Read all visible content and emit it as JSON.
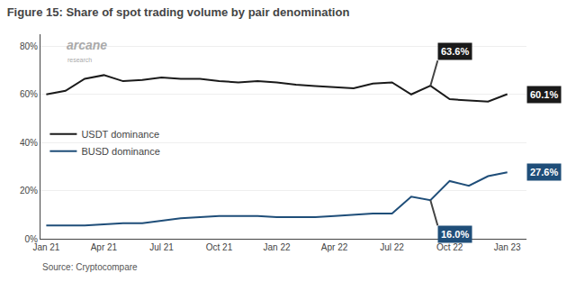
{
  "chart_data": {
    "type": "line",
    "title": "Figure 15: Share of spot trading volume by pair denomination",
    "source": "Source: Cryptocompare",
    "watermark": [
      "arcane",
      "research"
    ],
    "x": [
      0,
      1,
      2,
      3,
      4,
      5,
      6,
      7,
      8,
      9,
      10,
      11,
      12,
      13,
      14,
      15,
      16,
      17,
      18,
      19,
      20,
      21,
      22,
      23,
      24
    ],
    "series": [
      {
        "name": "USDT dominance",
        "color": "#1a1a1a",
        "values": [
          60.0,
          61.5,
          66.5,
          68.0,
          65.5,
          66.0,
          67.0,
          66.5,
          66.5,
          65.5,
          65.0,
          65.5,
          65.0,
          64.0,
          63.5,
          63.0,
          62.5,
          64.5,
          65.0,
          60.0,
          63.6,
          58.0,
          57.5,
          57.0,
          60.1
        ]
      },
      {
        "name": "BUSD dominance",
        "color": "#1f4e79",
        "values": [
          5.5,
          5.5,
          5.5,
          6.0,
          6.5,
          6.5,
          7.5,
          8.5,
          9.0,
          9.5,
          9.5,
          9.5,
          9.0,
          9.0,
          9.0,
          9.5,
          10.0,
          10.5,
          10.5,
          17.5,
          16.0,
          24.0,
          22.0,
          26.0,
          27.6
        ]
      }
    ],
    "annotations": [
      {
        "text": "63.6%",
        "x": 20,
        "y": 63.6,
        "series": "USDT dominance",
        "color": "#1a1a1a"
      },
      {
        "text": "60.1%",
        "x": 24,
        "y": 60.1,
        "series": "USDT dominance",
        "color": "#1a1a1a"
      },
      {
        "text": "16.0%",
        "x": 20,
        "y": 16.0,
        "series": "BUSD dominance",
        "color": "#1f4e79"
      },
      {
        "text": "27.6%",
        "x": 24,
        "y": 27.6,
        "series": "BUSD dominance",
        "color": "#1f4e79"
      }
    ],
    "xlim": [
      -0.3,
      25.0
    ],
    "xticks": [
      {
        "value": 0,
        "label": "Jan 21"
      },
      {
        "value": 3,
        "label": "Apr 21"
      },
      {
        "value": 6,
        "label": "Jul 21"
      },
      {
        "value": 9,
        "label": "Oct 21"
      },
      {
        "value": 12,
        "label": "Jan 22"
      },
      {
        "value": 15,
        "label": "Apr 22"
      },
      {
        "value": 18,
        "label": "Jul 22"
      },
      {
        "value": 21,
        "label": "Oct 22"
      },
      {
        "value": 24,
        "label": "Jan 23"
      }
    ],
    "ylim": [
      0,
      85
    ],
    "yticks": [
      {
        "value": 0,
        "label": "0%"
      },
      {
        "value": 20,
        "label": "20%"
      },
      {
        "value": 40,
        "label": "40%"
      },
      {
        "value": 60,
        "label": "60%"
      },
      {
        "value": 80,
        "label": "80%"
      }
    ],
    "grid": "y",
    "legend": "left"
  }
}
